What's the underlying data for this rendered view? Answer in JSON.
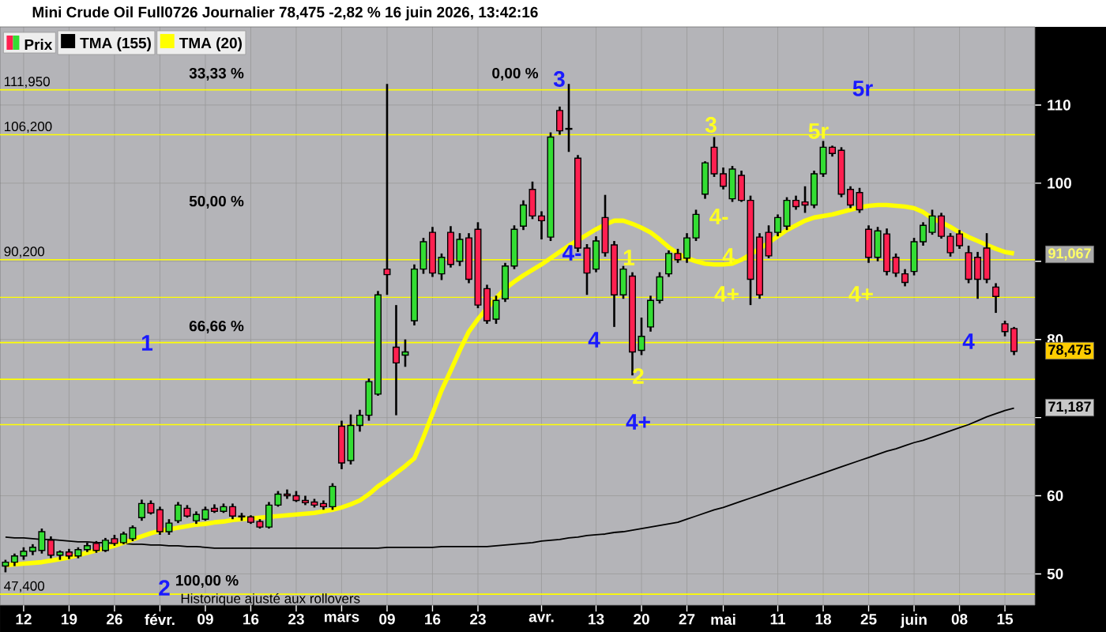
{
  "chart_data": {
    "type": "candlestick",
    "title": "Mini Crude Oil Full0726 Journalier 78,475 -2,82 % 16 juin 2026, 13:42:16",
    "categories": [
      null,
      null,
      "12",
      null,
      null,
      null,
      null,
      "19",
      null,
      null,
      null,
      null,
      "26",
      null,
      null,
      null,
      null,
      "févr.",
      null,
      null,
      null,
      null,
      "09",
      null,
      null,
      null,
      null,
      "16",
      null,
      null,
      null,
      null,
      "23",
      null,
      null,
      null,
      null,
      "mars",
      null,
      null,
      null,
      null,
      "09",
      null,
      null,
      null,
      null,
      "16",
      null,
      null,
      null,
      null,
      "23",
      null,
      null,
      null,
      null,
      null,
      null,
      "avr.",
      null,
      null,
      null,
      null,
      null,
      "13",
      null,
      null,
      null,
      null,
      "20",
      null,
      null,
      null,
      null,
      "27",
      null,
      null,
      null,
      "mai",
      null,
      null,
      null,
      null,
      null,
      "11",
      null,
      null,
      null,
      null,
      "18",
      null,
      null,
      null,
      null,
      "25",
      null,
      null,
      null,
      null,
      "juin",
      null,
      null,
      null,
      null,
      "08",
      null,
      null,
      null,
      null,
      "15",
      null
    ],
    "series": [
      {
        "name": "Prix",
        "ohlc": [
          [
            51,
            51.8,
            50.2,
            51.5
          ],
          [
            51.5,
            52.6,
            51,
            52.3
          ],
          [
            52.3,
            53.4,
            51.8,
            52.9
          ],
          [
            52.9,
            53.8,
            52.4,
            53.4
          ],
          [
            53,
            55.8,
            52.6,
            55.4
          ],
          [
            54.3,
            54.8,
            52,
            52.4
          ],
          [
            52.4,
            53,
            51.8,
            52.8
          ],
          [
            52.8,
            53.2,
            51.9,
            52.3
          ],
          [
            52.3,
            53.4,
            52,
            53.1
          ],
          [
            53.1,
            54,
            52.8,
            53.6
          ],
          [
            53.9,
            54.2,
            52.7,
            53
          ],
          [
            53,
            54.6,
            52.8,
            54.3
          ],
          [
            54.5,
            55,
            53.6,
            53.9
          ],
          [
            54,
            55.4,
            53.8,
            55.1
          ],
          [
            54.5,
            56.2,
            54.2,
            55.9
          ],
          [
            57.2,
            59.5,
            56.8,
            59
          ],
          [
            59,
            59.4,
            57.6,
            57.8
          ],
          [
            58.2,
            58.6,
            55,
            55.4
          ],
          [
            55.4,
            57,
            55,
            56.5
          ],
          [
            56.8,
            59.2,
            56.5,
            58.8
          ],
          [
            58.4,
            58.8,
            57.2,
            57.4
          ],
          [
            56.8,
            58,
            56.4,
            57.6
          ],
          [
            57,
            58.6,
            56.8,
            58.2
          ],
          [
            58.4,
            58.9,
            57.8,
            58
          ],
          [
            58,
            59,
            57.8,
            58.6
          ],
          [
            58.6,
            59,
            57,
            57.4
          ],
          [
            57.4,
            57.8,
            56.8,
            57.3
          ],
          [
            57.3,
            57.5,
            56.4,
            56.6
          ],
          [
            56.7,
            57,
            55.8,
            56
          ],
          [
            56,
            59.2,
            55.8,
            58.8
          ],
          [
            58.8,
            60.6,
            58.6,
            60.2
          ],
          [
            60.2,
            60.8,
            59.6,
            60
          ],
          [
            60,
            60.6,
            59.2,
            59.4
          ],
          [
            59.4,
            60,
            58.8,
            59.1
          ],
          [
            59.2,
            59.6,
            58.5,
            58.8
          ],
          [
            59,
            59.4,
            58.2,
            58.6
          ],
          [
            58.6,
            61.6,
            58.2,
            61.2
          ],
          [
            68.9,
            69.6,
            63.4,
            64.2
          ],
          [
            64.5,
            70.4,
            64,
            69
          ],
          [
            69,
            71,
            68.2,
            70.3
          ],
          [
            70.3,
            75,
            69.6,
            74.6
          ],
          [
            73,
            86.2,
            72.8,
            85.7
          ],
          [
            89,
            112.7,
            85.7,
            88.3
          ],
          [
            79,
            84.4,
            70.3,
            77
          ],
          [
            78,
            80,
            76.5,
            78.4
          ],
          [
            82.4,
            89.6,
            81.8,
            89
          ],
          [
            89,
            93,
            88.4,
            92.5
          ],
          [
            93.7,
            94.4,
            88,
            88.5
          ],
          [
            88.4,
            91,
            87.6,
            90.5
          ],
          [
            93.7,
            94.5,
            89.2,
            89.6
          ],
          [
            90,
            93.6,
            89.4,
            92.8
          ],
          [
            93,
            93.6,
            87.2,
            87.7
          ],
          [
            94.1,
            95,
            84,
            84.4
          ],
          [
            86.5,
            87,
            82,
            82.4
          ],
          [
            82.6,
            85.6,
            82,
            85
          ],
          [
            85.2,
            89.8,
            84.8,
            89.4
          ],
          [
            89.4,
            94.6,
            89,
            94.1
          ],
          [
            94.5,
            97.8,
            94,
            97.2
          ],
          [
            99.2,
            100.2,
            95.4,
            95.8
          ],
          [
            95.8,
            96.4,
            92.8,
            95.2
          ],
          [
            93.1,
            106.5,
            92.6,
            105.9
          ],
          [
            109.3,
            109.8,
            106.2,
            106.7
          ],
          [
            107,
            112.7,
            104,
            106.9
          ],
          [
            103.2,
            103.6,
            91.2,
            91.7
          ],
          [
            91.7,
            92.2,
            85.7,
            88.5
          ],
          [
            89,
            93.2,
            88.6,
            92.6
          ],
          [
            95.6,
            98.5,
            90.6,
            91.1
          ],
          [
            92.1,
            92.6,
            81.6,
            85.7
          ],
          [
            85.7,
            89.4,
            85.2,
            89
          ],
          [
            88.1,
            88.6,
            75.4,
            78.4
          ],
          [
            78.6,
            82.8,
            78,
            80.4
          ],
          [
            81.6,
            85.6,
            81,
            85
          ],
          [
            85,
            88.6,
            84.6,
            88
          ],
          [
            88.4,
            91.4,
            88,
            91
          ],
          [
            91,
            91.6,
            89.8,
            90.2
          ],
          [
            90.4,
            93.6,
            89.8,
            93
          ],
          [
            93,
            96.6,
            92.6,
            96
          ],
          [
            98.6,
            102.8,
            98,
            102.6
          ],
          [
            104.6,
            105.9,
            100.8,
            101.2
          ],
          [
            101.2,
            102,
            99.2,
            99.6
          ],
          [
            98,
            102.2,
            97.6,
            101.8
          ],
          [
            101,
            101.6,
            97.6,
            97.8
          ],
          [
            97.8,
            98.4,
            84.4,
            87.7
          ],
          [
            93.1,
            93.6,
            85.2,
            85.7
          ],
          [
            93.7,
            94.6,
            90.4,
            90.7
          ],
          [
            93.7,
            96,
            93.2,
            95.6
          ],
          [
            94.5,
            98.2,
            94,
            97.8
          ],
          [
            97.8,
            98.4,
            96.6,
            97
          ],
          [
            97.6,
            99.6,
            96.2,
            97.2
          ],
          [
            97.2,
            101.6,
            96.8,
            101.2
          ],
          [
            101.2,
            105.4,
            100.8,
            104.6
          ],
          [
            104.6,
            104.8,
            103.4,
            103.8
          ],
          [
            104.2,
            104.6,
            98.2,
            98.6
          ],
          [
            99.2,
            99.6,
            96.8,
            97.2
          ],
          [
            98.8,
            99.4,
            96.2,
            96.6
          ],
          [
            94.1,
            94.6,
            89.8,
            90.5
          ],
          [
            90.5,
            94.4,
            90,
            93.9
          ],
          [
            93.5,
            94.2,
            88.2,
            88.7
          ],
          [
            90.5,
            91,
            88,
            88.5
          ],
          [
            88.4,
            89,
            86.8,
            87.3
          ],
          [
            88.7,
            93,
            88.2,
            92.5
          ],
          [
            92.5,
            95,
            92,
            94.6
          ],
          [
            93.7,
            96.6,
            93.4,
            95.8
          ],
          [
            95.8,
            96.2,
            92.9,
            93.2
          ],
          [
            93.2,
            93.6,
            90.6,
            91.1
          ],
          [
            93.5,
            94,
            91.6,
            92
          ],
          [
            91.1,
            92,
            87.2,
            87.7
          ],
          [
            90.5,
            91.2,
            85.2,
            87.7
          ],
          [
            91.7,
            93.6,
            87.2,
            87.7
          ],
          [
            86.7,
            87.2,
            83.4,
            85.5
          ],
          [
            82,
            82.4,
            80.4,
            81
          ],
          [
            81.4,
            81.6,
            78,
            78.475
          ]
        ],
        "colors": [
          "#33dd33",
          "#33dd33",
          "#33dd33",
          "#33dd33",
          "#33dd33",
          "#ff2050",
          "#33dd33",
          "#ff2050",
          "#33dd33",
          "#33dd33",
          "#ff2050",
          "#33dd33",
          "#ff2050",
          "#33dd33",
          "#33dd33",
          "#33dd33",
          "#ff2050",
          "#ff2050",
          "#33dd33",
          "#33dd33",
          "#ff2050",
          "#33dd33",
          "#33dd33",
          "#ff2050",
          "#33dd33",
          "#ff2050",
          "#ff2050",
          "#ff2050",
          "#ff2050",
          "#33dd33",
          "#33dd33",
          "#ff2050",
          "#ff2050",
          "#ff2050",
          "#ff2050",
          "#ff2050",
          "#33dd33",
          "#ff2050",
          "#33dd33",
          "#33dd33",
          "#33dd33",
          "#33dd33",
          "#ff2050",
          "#ff2050",
          "#33dd33",
          "#33dd33",
          "#33dd33",
          "#ff2050",
          "#33dd33",
          "#ff2050",
          "#33dd33",
          "#ff2050",
          "#ff2050",
          "#ff2050",
          "#33dd33",
          "#33dd33",
          "#33dd33",
          "#33dd33",
          "#ff2050",
          "#ff2050",
          "#33dd33",
          "#ff2050",
          "#ff2050",
          "#ff2050",
          "#ff2050",
          "#33dd33",
          "#ff2050",
          "#ff2050",
          "#33dd33",
          "#ff2050",
          "#33dd33",
          "#33dd33",
          "#33dd33",
          "#33dd33",
          "#ff2050",
          "#33dd33",
          "#33dd33",
          "#33dd33",
          "#ff2050",
          "#ff2050",
          "#33dd33",
          "#ff2050",
          "#ff2050",
          "#ff2050",
          "#ff2050",
          "#33dd33",
          "#33dd33",
          "#ff2050",
          "#ff2050",
          "#33dd33",
          "#33dd33",
          "#ff2050",
          "#ff2050",
          "#ff2050",
          "#ff2050",
          "#ff2050",
          "#33dd33",
          "#ff2050",
          "#ff2050",
          "#ff2050",
          "#33dd33",
          "#33dd33",
          "#33dd33",
          "#ff2050",
          "#ff2050",
          "#ff2050",
          "#ff2050",
          "#ff2050",
          "#ff2050",
          "#ff2050",
          "#ff2050",
          "#ff2050"
        ]
      },
      {
        "name": "TMA (155)",
        "type": "line",
        "color": "#000000",
        "values": [
          54.7,
          54.6,
          54.6,
          54.5,
          54.4,
          54.4,
          54.3,
          54.2,
          54.1,
          54.1,
          54.0,
          54.0,
          53.9,
          53.9,
          53.8,
          53.8,
          53.7,
          53.7,
          53.6,
          53.6,
          53.5,
          53.5,
          53.4,
          53.3,
          53.3,
          53.3,
          53.3,
          53.3,
          53.3,
          53.3,
          53.3,
          53.3,
          53.3,
          53.3,
          53.3,
          53.3,
          53.3,
          53.3,
          53.3,
          53.3,
          53.3,
          53.3,
          53.4,
          53.4,
          53.4,
          53.4,
          53.4,
          53.4,
          53.5,
          53.5,
          53.5,
          53.5,
          53.5,
          53.5,
          53.6,
          53.7,
          53.8,
          53.9,
          54.0,
          54.2,
          54.3,
          54.4,
          54.6,
          54.7,
          54.9,
          55.0,
          55.1,
          55.3,
          55.4,
          55.6,
          55.8,
          56.0,
          56.2,
          56.4,
          56.6,
          57.0,
          57.4,
          57.8,
          58.2,
          58.5,
          58.9,
          59.3,
          59.7,
          60.1,
          60.5,
          60.9,
          61.3,
          61.7,
          62.1,
          62.5,
          62.9,
          63.3,
          63.7,
          64.1,
          64.5,
          64.9,
          65.3,
          65.7,
          66.0,
          66.4,
          66.8,
          67.1,
          67.5,
          67.9,
          68.3,
          68.7,
          69.1,
          69.6,
          70.1,
          70.5,
          70.9,
          71.2
        ]
      },
      {
        "name": "TMA (20)",
        "type": "line",
        "color": "#ffff00",
        "values": [
          51.1,
          51.2,
          51.3,
          51.4,
          51.5,
          51.7,
          51.9,
          52.1,
          52.4,
          52.7,
          53.0,
          53.3,
          53.6,
          54.0,
          54.4,
          54.8,
          55.2,
          55.5,
          55.7,
          55.9,
          56.1,
          56.3,
          56.4,
          56.6,
          56.7,
          56.9,
          57.0,
          57.1,
          57.2,
          57.3,
          57.4,
          57.5,
          57.6,
          57.7,
          57.8,
          58.0,
          58.2,
          58.5,
          58.9,
          59.4,
          60.2,
          61.2,
          62.0,
          62.9,
          63.8,
          64.8,
          67.5,
          70.5,
          73.5,
          76.0,
          78.6,
          81.0,
          82.6,
          84.0,
          85.3,
          86.5,
          87.4,
          88.2,
          88.9,
          89.6,
          90.4,
          91.2,
          92.0,
          92.7,
          93.4,
          94.1,
          94.7,
          95.2,
          95.2,
          94.8,
          94.3,
          93.7,
          92.8,
          91.8,
          91.0,
          90.4,
          90.0,
          89.7,
          89.6,
          89.6,
          89.7,
          90.2,
          90.9,
          91.6,
          92.4,
          93.2,
          94.0,
          94.6,
          95.2,
          95.6,
          95.8,
          96.0,
          96.3,
          96.6,
          96.9,
          97.1,
          97.2,
          97.2,
          97.1,
          97.0,
          96.8,
          96.3,
          95.5,
          95.0,
          94.4,
          93.7,
          93.1,
          92.6,
          92.1,
          91.6,
          91.2,
          91.0
        ]
      }
    ],
    "ylim": [
      46,
      120
    ],
    "yticks": [
      50,
      60,
      {
        "value": 70,
        "label": null
      },
      80,
      {
        "value": 90,
        "label": null
      },
      100,
      110
    ],
    "grid": true,
    "legend": "top left",
    "ref_lines": [
      {
        "axis": "y",
        "value": 111.95,
        "label": "111,950",
        "color": "#ffff00"
      },
      {
        "axis": "y",
        "value": 106.2,
        "label": "106,200",
        "color": "#ffff00"
      },
      {
        "axis": "y",
        "value": 90.2,
        "label": "90,200",
        "color": "#ffff00"
      },
      {
        "axis": "y",
        "value": 85.4,
        "color": "#ffff00"
      },
      {
        "axis": "y",
        "value": 79.6,
        "color": "#ffff00"
      },
      {
        "axis": "y",
        "value": 74.9,
        "color": "#ffff00"
      },
      {
        "axis": "y",
        "value": 69.1,
        "color": "#ffff00"
      },
      {
        "axis": "y",
        "value": 47.4,
        "label": "47,400",
        "color": "#ffff00"
      }
    ],
    "annotations": [
      "33,33 %",
      "50,00 %",
      "66,66 %",
      "0,00 %",
      "100,00 %",
      "1",
      "2",
      "3",
      "4-",
      "4",
      "4+",
      "5r",
      "4",
      "1",
      "2",
      "3",
      "4-",
      "4",
      "4+",
      "4+",
      "5r",
      "Historique ajusté aux rollovers",
      "91,067",
      "78,475",
      "71,187"
    ]
  }
}
